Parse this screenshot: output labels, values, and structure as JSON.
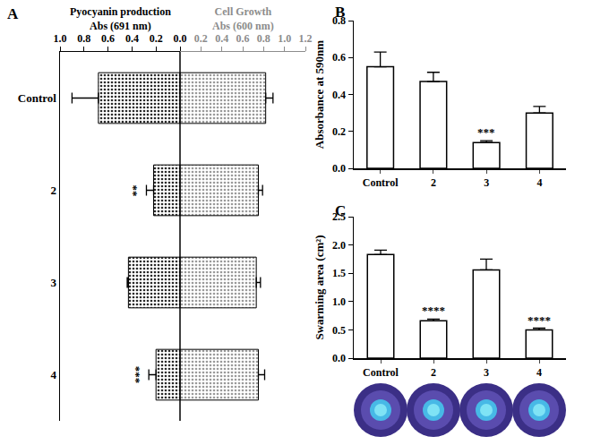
{
  "chart_data": [
    {
      "panel": "A",
      "type": "bar",
      "orientation": "horizontal",
      "grid": false,
      "categories": [
        "Control",
        "2",
        "3",
        "4"
      ],
      "series": [
        {
          "title": [
            "Pyocyanin production",
            "Abs (691 nm)"
          ],
          "color": "#5e5e5e",
          "values": [
            0.68,
            0.22,
            0.43,
            0.2
          ],
          "errors": [
            0.22,
            0.06,
            0.01,
            0.06
          ],
          "significance": [
            null,
            "**",
            null,
            "***"
          ],
          "xlim": [
            1.0,
            0.0
          ],
          "xticks": [
            {
              "value": 1,
              "label": "1.0"
            },
            0.8,
            0.6,
            0.4,
            0.2,
            {
              "value": 0,
              "label": "0.0"
            }
          ]
        },
        {
          "title": [
            "Cell Growth",
            "Abs (600 nm)"
          ],
          "color": "#d6d6d6",
          "values": [
            0.82,
            0.75,
            0.73,
            0.75
          ],
          "errors": [
            0.07,
            0.04,
            0.04,
            0.06
          ],
          "significance": [
            null,
            null,
            null,
            null
          ],
          "xlim": [
            0.0,
            1.2
          ],
          "xticks": [
            0.2,
            0.4,
            0.6,
            0.8,
            {
              "value": 1,
              "label": "1.0"
            },
            1.2
          ]
        }
      ]
    },
    {
      "panel": "B",
      "type": "bar",
      "grid": false,
      "color": "#ffffff",
      "categories": [
        "Control",
        "2",
        "3",
        "4"
      ],
      "values": [
        0.55,
        0.47,
        0.14,
        0.3
      ],
      "errors": [
        0.08,
        0.05,
        0.01,
        0.035
      ],
      "significance": [
        null,
        null,
        "***",
        null
      ],
      "y_label": "Absorbance at 590nm",
      "ylim": [
        0,
        0.8
      ],
      "yticks": [
        {
          "value": 0,
          "label": "0.0"
        },
        0.2,
        0.4,
        0.6,
        0.8
      ]
    },
    {
      "panel": "C",
      "type": "bar",
      "grid": false,
      "color": "#ffffff",
      "categories": [
        "Control",
        "2",
        "3",
        "4"
      ],
      "values": [
        1.83,
        0.66,
        1.56,
        0.5
      ],
      "errors": [
        0.08,
        0.03,
        0.19,
        0.03
      ],
      "significance": [
        null,
        "****",
        null,
        "****"
      ],
      "y_label": "Swarming area (cm²)",
      "ylim": [
        0,
        2.5
      ],
      "yticks": [
        {
          "value": 0,
          "label": "0.0"
        },
        0.5,
        {
          "value": 1,
          "label": "1.0"
        },
        1.5,
        {
          "value": 2,
          "label": "2.0"
        },
        2.5
      ]
    }
  ]
}
